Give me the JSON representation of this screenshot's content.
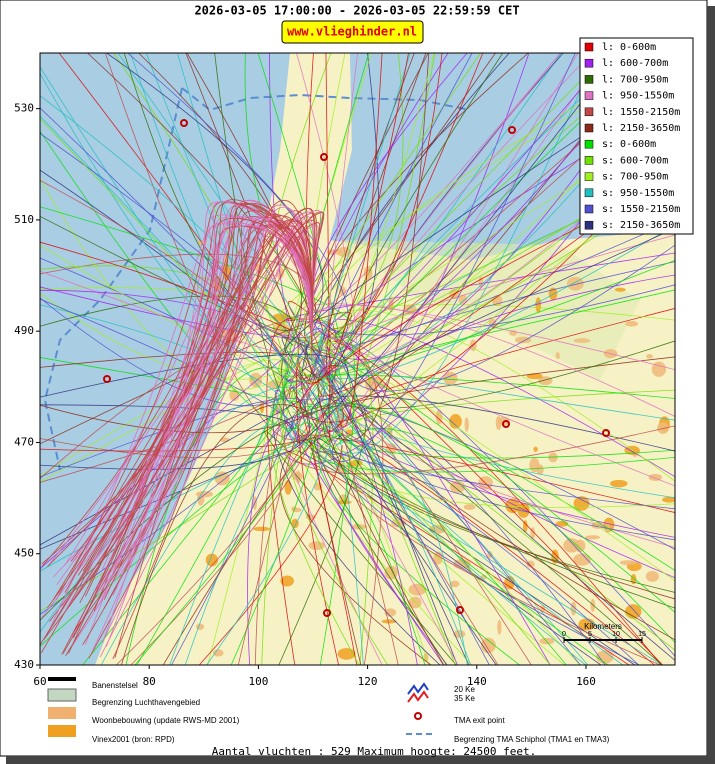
{
  "header": {
    "title": "2026-03-05 17:00:00 - 2026-03-05 22:59:59 CET",
    "website": "www.vlieghinder.nl"
  },
  "map": {
    "xlim": [
      60,
      176.3
    ],
    "ylim": [
      430,
      540
    ],
    "xticks": [
      60,
      80,
      100,
      120,
      140,
      160
    ],
    "yticks": [
      430,
      450,
      470,
      490,
      510,
      530
    ],
    "scale_label": "Kilometers",
    "scale_ticks": [
      0,
      5,
      10,
      15
    ]
  },
  "legend": {
    "items": [
      {
        "label": "l: 0-600m",
        "color": "#e00000"
      },
      {
        "label": "l: 600-700m",
        "color": "#a020f0"
      },
      {
        "label": "l: 700-950m",
        "color": "#2e6b00"
      },
      {
        "label": "l: 950-1550m",
        "color": "#e070c0"
      },
      {
        "label": "l: 1550-2150m",
        "color": "#c04848"
      },
      {
        "label": "l: 2150-3650m",
        "color": "#8b2a1a"
      },
      {
        "label": "s: 0-600m",
        "color": "#00e000"
      },
      {
        "label": "s: 600-700m",
        "color": "#70e000"
      },
      {
        "label": "s: 700-950m",
        "color": "#a0f020"
      },
      {
        "label": "s: 950-1550m",
        "color": "#20c0c0"
      },
      {
        "label": "s: 1550-2150m",
        "color": "#5050d0"
      },
      {
        "label": "s: 2150-3650m",
        "color": "#303080"
      }
    ]
  },
  "map_legend": {
    "runways": "Banenstelsel",
    "airport_boundary": "Begrenzing Luchthavengebied",
    "housing": "Woonbebouwing (update RWS-MD 2001)",
    "vinex": "Vinex2001 (bron: RPD)",
    "ke20": "20 Ke",
    "ke35": "35 Ke",
    "exit_point": "TMA exit point",
    "tma_boundary": "Begrenzing TMA Schiphol  (TMA1 en TMA3)"
  },
  "footer": "Aantal vluchten : 529 Maximum hoogte: 24500 feet."
}
